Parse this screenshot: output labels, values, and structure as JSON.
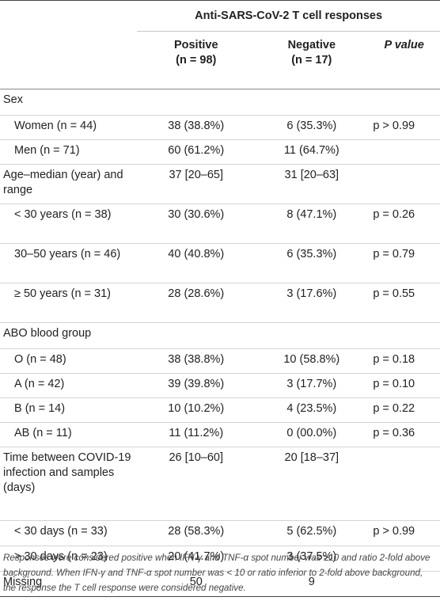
{
  "header": {
    "group_title": "Anti-SARS-CoV-2 T cell responses",
    "col_positive": "Positive",
    "col_positive_n": "(n = 98)",
    "col_negative": "Negative",
    "col_negative_n": "(n = 17)",
    "col_p": "P value"
  },
  "rows": [
    {
      "label": "Sex",
      "positive": "",
      "negative": "",
      "p": "",
      "indent": 0
    },
    {
      "label": "Women (n = 44)",
      "positive": "38 (38.8%)",
      "negative": "6 (35.3%)",
      "p": "p > 0.99",
      "indent": 1
    },
    {
      "label": "Men (n = 71)",
      "positive": "60 (61.2%)",
      "negative": "11 (64.7%)",
      "p": "",
      "indent": 1
    },
    {
      "label": "Age–median (year) and range",
      "positive": "37 [20–65]",
      "negative": "31 [20–63]",
      "p": "",
      "indent": 0
    },
    {
      "label": "< 30 years (n = 38)",
      "positive": "30 (30.6%)",
      "negative": "8 (47.1%)",
      "p": "p = 0.26",
      "indent": 1
    },
    {
      "label": "30–50 years (n = 46)",
      "positive": "40 (40.8%)",
      "negative": "6 (35.3%)",
      "p": "p = 0.79",
      "indent": 1
    },
    {
      "label": "≥ 50 years (n = 31)",
      "positive": "28 (28.6%)",
      "negative": "3 (17.6%)",
      "p": "p = 0.55",
      "indent": 1
    },
    {
      "label": "ABO blood group",
      "positive": "",
      "negative": "",
      "p": "",
      "indent": 0
    },
    {
      "label": "O (n = 48)",
      "positive": "38 (38.8%)",
      "negative": "10 (58.8%)",
      "p": "p = 0.18",
      "indent": 1
    },
    {
      "label": "A (n = 42)",
      "positive": "39 (39.8%)",
      "negative": "3 (17.7%)",
      "p": "p = 0.10",
      "indent": 1
    },
    {
      "label": "B (n = 14)",
      "positive": "10 (10.2%)",
      "negative": "4 (23.5%)",
      "p": "p = 0.22",
      "indent": 1
    },
    {
      "label": "AB (n = 11)",
      "positive": "11 (11.2%)",
      "negative": "0 (00.0%)",
      "p": "p = 0.36",
      "indent": 1
    },
    {
      "label": "Time between COVID-19 infection and samples (days)",
      "positive": "26 [10–60]",
      "negative": "20 [18–37]",
      "p": "",
      "indent": 0
    },
    {
      "label": "< 30 days (n = 33)",
      "positive": "28 (58.3%)",
      "negative": "5 (62.5%)",
      "p": "p > 0.99",
      "indent": 1
    },
    {
      "label": "> 30 days (n = 23)",
      "positive": "20 (41.7%)",
      "negative": "3 (37.5%)",
      "p": "",
      "indent": 1
    },
    {
      "label": "Missing",
      "positive": "50",
      "negative": "9",
      "p": "",
      "indent": 0,
      "centered": true
    }
  ],
  "footnote": "Responses were considered positive when IFN-γ and TNF-α spot number was ≥10 and ratio 2-fold above background. When IFN-γ and TNF-α spot number was < 10 or ratio inferior to 2-fold above background, the response the T cell response were considered negative."
}
